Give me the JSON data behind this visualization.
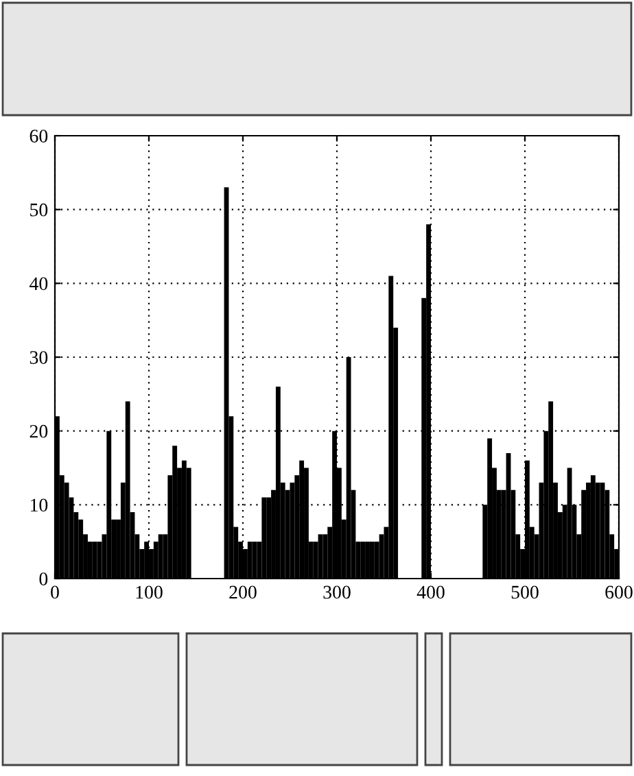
{
  "chart_data": {
    "type": "histogram",
    "bins": [
      0,
      5,
      10,
      15,
      20,
      25,
      30,
      35,
      40,
      45,
      50,
      55,
      60,
      65,
      70,
      75,
      80,
      85,
      90,
      95,
      100,
      105,
      110,
      115,
      120,
      125,
      130,
      135,
      140,
      145,
      150,
      155,
      160,
      165,
      170,
      175,
      180,
      185,
      190,
      195,
      200,
      205,
      210,
      215,
      220,
      225,
      230,
      235,
      240,
      245,
      250,
      255,
      260,
      265,
      270,
      275,
      280,
      285,
      290,
      295,
      300,
      305,
      310,
      315,
      320,
      325,
      330,
      335,
      340,
      345,
      350,
      355,
      360,
      365,
      370,
      375,
      380,
      385,
      390,
      395,
      400,
      405,
      410,
      415,
      420,
      425,
      430,
      435,
      440,
      445,
      450,
      455,
      460,
      465,
      470,
      475,
      480,
      485,
      490,
      495,
      500,
      505,
      510,
      515,
      520,
      525,
      530,
      535,
      540,
      545,
      550,
      555,
      560,
      565,
      570,
      575,
      580,
      585,
      590,
      595,
      600
    ],
    "values": [
      22,
      14,
      13,
      11,
      9,
      8,
      6,
      5,
      5,
      5,
      6,
      20,
      8,
      8,
      13,
      24,
      9,
      6,
      4,
      5,
      4,
      5,
      6,
      6,
      14,
      18,
      15,
      16,
      15,
      0,
      0,
      0,
      0,
      0,
      0,
      0,
      53,
      22,
      7,
      5,
      4,
      5,
      5,
      5,
      11,
      11,
      12,
      26,
      13,
      12,
      13,
      14,
      16,
      15,
      5,
      5,
      6,
      6,
      7,
      20,
      15,
      8,
      30,
      12,
      5,
      5,
      5,
      5,
      5,
      6,
      7,
      41,
      34,
      0,
      0,
      0,
      0,
      0,
      38,
      48,
      0,
      0,
      0,
      0,
      0,
      0,
      0,
      0,
      0,
      0,
      0,
      10,
      19,
      15,
      12,
      12,
      17,
      12,
      6,
      4,
      16,
      7,
      6,
      13,
      20,
      24,
      13,
      9,
      10,
      15,
      10,
      6,
      12,
      13,
      14,
      13,
      13,
      12,
      6,
      4
    ],
    "color": "#000000",
    "xlim": [
      0,
      600
    ],
    "xticks": [
      0,
      100,
      200,
      300,
      400,
      500,
      600
    ],
    "ylim": [
      0,
      60
    ],
    "yticks": [
      0,
      10,
      20,
      30,
      40,
      50,
      60
    ],
    "grid": true
  }
}
